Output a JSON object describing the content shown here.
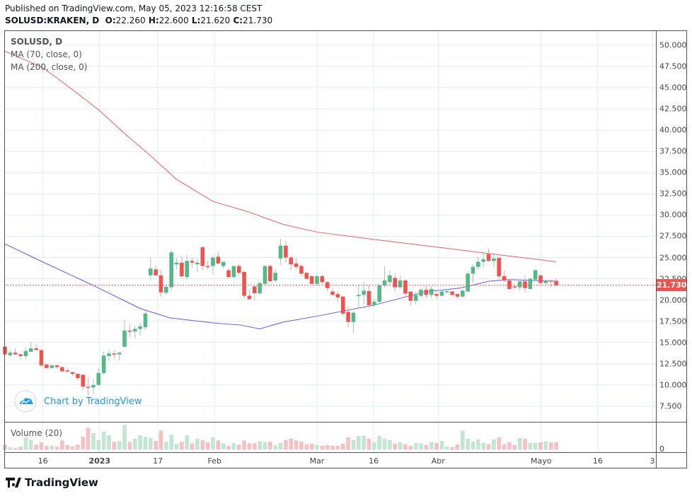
{
  "header": {
    "published": "Published on TradingView.com, May 05, 2023 12:16:58 CEST",
    "symbol": "SOLUSD:KRAKEN, D",
    "o_label": "O:",
    "o": "22.260",
    "h_label": "H:",
    "h": "22.600",
    "l_label": "L:",
    "l": "21.620",
    "c_label": "C:",
    "c": "21.730"
  },
  "legend": {
    "title": "SOLUSD, D",
    "ma1": "MA (70, close, 0)",
    "ma2": "MA (200, close, 0)"
  },
  "watermark": "Chart by TradingView",
  "logo": "TradingView",
  "colors": {
    "up": "#26a69a",
    "down": "#ef5350",
    "up_body": "#53b987",
    "ma70": "#5b5bf5",
    "ma200": "#f06060",
    "vol_up": "#c3e6d4",
    "vol_down": "#f7c1c4",
    "grid": "#e1ecf2"
  },
  "chart_data": {
    "type": "candlestick",
    "title": "SOLUSD, D",
    "ylim": [
      5,
      52.5
    ],
    "y_ticks": [
      "50.000",
      "47.500",
      "45.000",
      "42.500",
      "40.000",
      "37.500",
      "35.000",
      "32.500",
      "30.000",
      "27.500",
      "25.000",
      "22.500",
      "20.000",
      "17.500",
      "15.000",
      "12.500",
      "10.000",
      "7.500"
    ],
    "x_ticks": [
      {
        "label": "16",
        "index": 7.3,
        "bold": false
      },
      {
        "label": "2023",
        "index": 18.2,
        "bold": true
      },
      {
        "label": "17",
        "index": 29.4,
        "bold": false
      },
      {
        "label": "Feb",
        "index": 40.3,
        "bold": false
      },
      {
        "label": "Mar",
        "index": 60,
        "bold": false
      },
      {
        "label": "16",
        "index": 70.9,
        "bold": false
      },
      {
        "label": "Abr",
        "index": 83.3,
        "bold": false
      },
      {
        "label": "Mayo",
        "index": 103.1,
        "bold": false
      },
      {
        "label": "16",
        "index": 114,
        "bold": false
      },
      {
        "label": "3",
        "index": 124.5,
        "bold": false
      }
    ],
    "last_price": "21.730",
    "last_value": 21.73,
    "ohlc": [
      [
        14.5,
        14.6,
        13.5,
        13.6
      ],
      [
        13.5,
        14.0,
        13.3,
        13.8
      ],
      [
        13.8,
        14.3,
        13.5,
        13.6
      ],
      [
        13.6,
        13.7,
        13.0,
        13.4
      ],
      [
        13.4,
        14.4,
        13.0,
        14.0
      ],
      [
        13.9,
        15.1,
        13.9,
        14.3
      ],
      [
        14.3,
        14.8,
        14.1,
        14.1
      ],
      [
        14.1,
        14.2,
        12.1,
        12.3
      ],
      [
        12.4,
        12.6,
        11.8,
        12.0
      ],
      [
        12.0,
        12.4,
        11.9,
        12.3
      ],
      [
        12.3,
        12.4,
        11.9,
        12.1
      ],
      [
        12.1,
        12.2,
        11.5,
        11.6
      ],
      [
        11.7,
        12.0,
        11.4,
        11.6
      ],
      [
        11.5,
        11.6,
        11.1,
        11.3
      ],
      [
        11.3,
        11.4,
        10.5,
        10.8
      ],
      [
        11.2,
        11.2,
        9.4,
        9.8
      ],
      [
        9.8,
        11.0,
        8.5,
        9.7
      ],
      [
        9.7,
        10.7,
        9.0,
        10.0
      ],
      [
        10.0,
        12.0,
        9.9,
        11.4
      ],
      [
        11.4,
        13.9,
        11.2,
        13.45
      ],
      [
        13.4,
        14.2,
        12.8,
        13.7
      ],
      [
        13.7,
        14.1,
        13.0,
        13.6
      ],
      [
        13.6,
        13.8,
        12.9,
        13.8
      ],
      [
        14.5,
        17.6,
        14.4,
        16.4
      ],
      [
        16.4,
        17.2,
        15.6,
        16.3
      ],
      [
        16.3,
        17.0,
        15.5,
        16.6
      ],
      [
        16.6,
        17.4,
        15.8,
        16.9
      ],
      [
        16.8,
        18.7,
        16.5,
        18.4
      ],
      [
        22.9,
        25.0,
        22.3,
        23.7
      ],
      [
        23.6,
        24.1,
        22.8,
        22.9
      ],
      [
        22.9,
        23.6,
        20.4,
        20.9
      ],
      [
        20.85,
        21.8,
        20.6,
        21.55
      ],
      [
        21.5,
        25.9,
        21.1,
        25.6
      ],
      [
        24.2,
        24.9,
        23.6,
        24.4
      ],
      [
        24.4,
        25.2,
        22.6,
        22.8
      ],
      [
        22.7,
        25.3,
        22.4,
        24.6
      ],
      [
        24.6,
        25.0,
        23.8,
        24.4
      ],
      [
        24.2,
        24.9,
        23.3,
        24.4
      ],
      [
        26.2,
        26.4,
        23.5,
        24.0
      ],
      [
        24.0,
        24.6,
        23.6,
        23.9
      ],
      [
        24.0,
        25.2,
        23.0,
        25.0
      ],
      [
        25.1,
        25.7,
        24.2,
        24.3
      ],
      [
        24.0,
        24.5,
        23.7,
        24.5
      ],
      [
        23.5,
        23.7,
        22.6,
        22.7
      ],
      [
        22.7,
        24.0,
        22.6,
        24.0
      ],
      [
        24.0,
        24.2,
        22.9,
        23.2
      ],
      [
        23.3,
        23.4,
        20.2,
        20.5
      ],
      [
        20.5,
        21.2,
        20.0,
        20.1
      ],
      [
        21.6,
        21.6,
        20.0,
        20.8
      ],
      [
        20.8,
        22.2,
        20.6,
        22.0
      ],
      [
        21.9,
        24.1,
        21.7,
        24.0
      ],
      [
        24.0,
        24.2,
        22.1,
        22.2
      ],
      [
        22.3,
        23.6,
        22.1,
        23.2
      ],
      [
        24.9,
        27.2,
        24.1,
        26.4
      ],
      [
        26.4,
        26.9,
        24.4,
        25.0
      ],
      [
        25.0,
        25.2,
        23.5,
        24.2
      ],
      [
        24.3,
        24.9,
        23.6,
        23.9
      ],
      [
        24.0,
        24.2,
        22.8,
        23.1
      ],
      [
        23.2,
        23.3,
        22.4,
        22.5
      ],
      [
        22.8,
        22.9,
        21.9,
        21.9
      ],
      [
        21.9,
        23.0,
        21.8,
        22.8
      ],
      [
        22.8,
        23.0,
        21.9,
        22.1
      ],
      [
        22.1,
        22.2,
        21.0,
        21.4
      ],
      [
        21.0,
        21.4,
        20.5,
        20.6
      ],
      [
        20.7,
        21.0,
        19.8,
        20.3
      ],
      [
        20.4,
        20.5,
        18.1,
        18.4
      ],
      [
        18.6,
        19.2,
        16.8,
        17.4
      ],
      [
        17.4,
        18.6,
        16.1,
        18.5
      ],
      [
        20.45,
        21.8,
        19.0,
        20.6
      ],
      [
        20.6,
        22.1,
        19.5,
        21.1
      ],
      [
        21.05,
        21.8,
        19.1,
        19.4
      ],
      [
        19.4,
        20.2,
        19.2,
        19.8
      ],
      [
        19.8,
        21.9,
        19.6,
        21.7
      ],
      [
        21.7,
        24.0,
        21.5,
        22.3
      ],
      [
        22.1,
        23.5,
        21.6,
        22.9
      ],
      [
        22.6,
        23.2,
        21.0,
        21.5
      ],
      [
        21.5,
        22.9,
        21.3,
        22.3
      ],
      [
        22.3,
        22.4,
        20.4,
        20.75
      ],
      [
        21.0,
        21.0,
        19.3,
        19.9
      ],
      [
        19.9,
        21.0,
        19.5,
        20.6
      ],
      [
        20.5,
        21.5,
        20.3,
        21.2
      ],
      [
        21.2,
        21.6,
        20.2,
        20.6
      ],
      [
        20.6,
        21.6,
        20.3,
        21.3
      ],
      [
        20.7,
        21.0,
        20.1,
        20.5
      ],
      [
        20.5,
        21.2,
        20.4,
        21.0
      ],
      [
        21.0,
        21.3,
        20.7,
        21.05
      ],
      [
        21.0,
        21.1,
        20.4,
        20.6
      ],
      [
        20.7,
        20.8,
        20.1,
        20.4
      ],
      [
        20.4,
        21.3,
        20.3,
        21.1
      ],
      [
        21.0,
        23.4,
        20.9,
        23.1
      ],
      [
        23.1,
        24.2,
        22.0,
        23.9
      ],
      [
        23.9,
        25.1,
        23.5,
        24.5
      ],
      [
        24.5,
        25.5,
        23.8,
        24.8
      ],
      [
        25.4,
        26.1,
        24.5,
        24.6
      ],
      [
        24.6,
        25.4,
        23.9,
        24.9
      ],
      [
        24.95,
        25.1,
        22.4,
        22.8
      ],
      [
        22.8,
        23.5,
        22.1,
        22.3
      ],
      [
        22.3,
        22.5,
        21.2,
        21.3
      ],
      [
        21.6,
        21.7,
        21.3,
        21.5
      ],
      [
        21.5,
        22.2,
        21.1,
        22.2
      ],
      [
        22.2,
        22.9,
        20.9,
        21.4
      ],
      [
        21.3,
        22.6,
        21.3,
        22.5
      ],
      [
        22.4,
        23.6,
        22.3,
        23.5
      ],
      [
        22.9,
        23.0,
        21.7,
        22.0
      ],
      [
        22.0,
        22.4,
        21.8,
        22.3
      ],
      [
        22.3,
        22.3,
        21.5,
        22.25
      ],
      [
        22.26,
        22.6,
        21.62,
        21.73
      ]
    ],
    "volume_label": "Volume (20)",
    "volume_zero": "0",
    "volume_relative": [
      22,
      10,
      7,
      13,
      52,
      43,
      22,
      32,
      16,
      17,
      14,
      40,
      20,
      14,
      22,
      56,
      94,
      71,
      41,
      77,
      62,
      34,
      37,
      106,
      34,
      47,
      62,
      55,
      50,
      38,
      82,
      34,
      64,
      25,
      34,
      62,
      28,
      47,
      40,
      32,
      53,
      40,
      28,
      17,
      28,
      22,
      40,
      28,
      28,
      37,
      32,
      34,
      19,
      29,
      41,
      47,
      40,
      35,
      23,
      26,
      20,
      17,
      20,
      17,
      17,
      26,
      53,
      41,
      59,
      59,
      47,
      32,
      59,
      47,
      41,
      26,
      32,
      23,
      17,
      29,
      26,
      20,
      32,
      29,
      38,
      14,
      11,
      23,
      82,
      47,
      35,
      44,
      29,
      23,
      44,
      53,
      23,
      32,
      20,
      50,
      47,
      29,
      29,
      32,
      35,
      32,
      32
    ],
    "ma70": [
      [
        0,
        26.6
      ],
      [
        7.2,
        24.5
      ],
      [
        16.7,
        21.8
      ],
      [
        26,
        19.0
      ],
      [
        31.7,
        17.9
      ],
      [
        40,
        17.3
      ],
      [
        45.3,
        17.05
      ],
      [
        49,
        16.6
      ],
      [
        53.5,
        17.4
      ],
      [
        60,
        18.1
      ],
      [
        71,
        19.4
      ],
      [
        80.7,
        20.95
      ],
      [
        87.5,
        21.4
      ],
      [
        93,
        22.2
      ],
      [
        97,
        22.4
      ],
      [
        106,
        22.2
      ]
    ],
    "ma200": [
      [
        0,
        49.3
      ],
      [
        7.2,
        47.4
      ],
      [
        12.7,
        44.9
      ],
      [
        18,
        42.4
      ],
      [
        23,
        39.6
      ],
      [
        27.6,
        37.2
      ],
      [
        33,
        34.2
      ],
      [
        40,
        31.6
      ],
      [
        46.7,
        30.4
      ],
      [
        53.5,
        28.9
      ],
      [
        60,
        28.0
      ],
      [
        70,
        27.2
      ],
      [
        83.4,
        26.2
      ],
      [
        94,
        25.4
      ],
      [
        106,
        24.5
      ]
    ]
  }
}
